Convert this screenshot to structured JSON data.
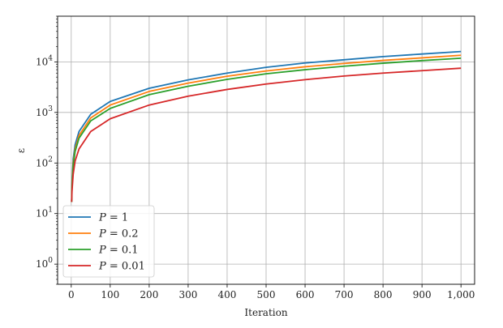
{
  "chart_data": {
    "type": "line",
    "xlabel": "Iteration",
    "ylabel": "ε",
    "xlim": [
      -35,
      1035
    ],
    "ylim": [
      0.4,
      80000
    ],
    "yscale": "log",
    "grid": true,
    "legend_position": "lower-left",
    "x_ticks": [
      0,
      100,
      200,
      300,
      400,
      500,
      600,
      700,
      800,
      900,
      1000
    ],
    "x_tick_labels": [
      "0",
      "100",
      "200",
      "300",
      "400",
      "500",
      "600",
      "700",
      "800",
      "900",
      "1,000"
    ],
    "y_ticks": [
      1,
      10,
      100,
      1000,
      10000
    ],
    "y_tick_labels": [
      {
        "base": "10",
        "exp": "0"
      },
      {
        "base": "10",
        "exp": "1"
      },
      {
        "base": "10",
        "exp": "2"
      },
      {
        "base": "10",
        "exp": "3"
      },
      {
        "base": "10",
        "exp": "4"
      }
    ],
    "x": [
      1,
      2,
      5,
      10,
      20,
      50,
      100,
      200,
      300,
      400,
      500,
      600,
      700,
      800,
      900,
      1000
    ],
    "series": [
      {
        "name": "P = 1",
        "label_var": "P",
        "label_value": "1",
        "color": "#1f77b4",
        "values": [
          17,
          42,
          120,
          230,
          420,
          920,
          1650,
          3000,
          4400,
          6000,
          7800,
          9500,
          11000,
          12700,
          14300,
          16000
        ]
      },
      {
        "name": "P = 0.2",
        "label_var": "P",
        "label_value": "0.2",
        "color": "#ff7f0e",
        "values": [
          17,
          38,
          100,
          190,
          350,
          780,
          1400,
          2600,
          3800,
          5200,
          6600,
          8000,
          9300,
          10700,
          12000,
          13500
        ]
      },
      {
        "name": "P = 0.1",
        "label_var": "P",
        "label_value": "0.1",
        "color": "#2ca02c",
        "values": [
          17,
          35,
          90,
          170,
          310,
          680,
          1200,
          2250,
          3300,
          4500,
          5800,
          7000,
          8200,
          9400,
          10600,
          11800
        ]
      },
      {
        "name": "P = 0.01",
        "label_var": "P",
        "label_value": "0.01",
        "color": "#d62728",
        "values": [
          17,
          28,
          60,
          110,
          190,
          420,
          750,
          1400,
          2100,
          2850,
          3650,
          4450,
          5250,
          6000,
          6700,
          7500
        ]
      }
    ]
  }
}
